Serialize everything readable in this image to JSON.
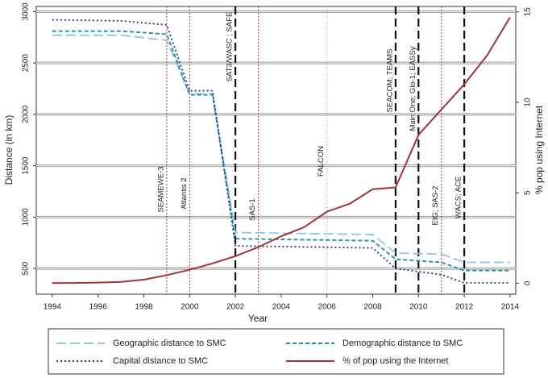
{
  "chart_data": {
    "type": "line",
    "x_label": "Year",
    "y_label": "Distance (in km)",
    "y2_label": "% pop using Internet",
    "xlim": [
      1993.3,
      2014.25
    ],
    "xticks": [
      1994,
      1996,
      1998,
      2000,
      2002,
      2004,
      2006,
      2008,
      2010,
      2012,
      2014
    ],
    "ylim": [
      250,
      3050
    ],
    "yticks": [
      500,
      1000,
      1500,
      2000,
      2500,
      3000
    ],
    "y2lim": [
      -0.6,
      15.3
    ],
    "y2ticks": [
      0,
      5,
      10,
      15
    ],
    "grid": true,
    "legend": "bottom",
    "series": [
      {
        "name": "Geographic distance to SMC",
        "color": "#8ec5e6",
        "line_style": "dashed",
        "x": [
          1994,
          1997,
          1999,
          2000,
          2001,
          2002,
          2008,
          2009,
          2011,
          2012,
          2014
        ],
        "values": [
          2770,
          2770,
          2720,
          2200,
          2200,
          850,
          830,
          650,
          640,
          560,
          560
        ]
      },
      {
        "name": "Demographic distance to SMC",
        "color": "#1a8ca6",
        "line_style": "short-dashed",
        "x": [
          1994,
          1997,
          1999,
          2000,
          2001,
          2002,
          2008,
          2009,
          2011,
          2012,
          2014
        ],
        "values": [
          2810,
          2810,
          2780,
          2190,
          2190,
          790,
          770,
          590,
          560,
          480,
          480
        ]
      },
      {
        "name": "Capital distance to SMC",
        "color": "#1f3b70",
        "line_style": "dotted",
        "x": [
          1994,
          1997,
          1999,
          2000,
          2001,
          2002,
          2008,
          2009,
          2011,
          2012,
          2014
        ],
        "values": [
          2920,
          2910,
          2870,
          2230,
          2230,
          720,
          700,
          500,
          440,
          360,
          360
        ]
      },
      {
        "name": "% of pop using the Internet",
        "color": "#a03535",
        "line_style": "solid",
        "axis": "y2",
        "x": [
          1994,
          1995,
          1996,
          1997,
          1998,
          1999,
          2000,
          2001,
          2002,
          2003,
          2004,
          2005,
          2006,
          2007,
          2008,
          2009,
          2010,
          2011,
          2012,
          2013,
          2014
        ],
        "values": [
          0.01,
          0.02,
          0.04,
          0.08,
          0.2,
          0.45,
          0.75,
          1.1,
          1.5,
          2.0,
          2.6,
          3.1,
          3.96,
          4.4,
          5.2,
          5.3,
          8.2,
          9.6,
          11,
          12.6,
          14.7
        ]
      }
    ],
    "annotations": [
      {
        "x": 1999,
        "label": "SEAMEWE-3",
        "style": "minor"
      },
      {
        "x": 2000,
        "label": "Atlantis 2",
        "style": "minor"
      },
      {
        "x": 2002,
        "label": "SAT3/WASC ; SAFE",
        "style": "major"
      },
      {
        "x": 2003,
        "label": "SAS-1",
        "style": "minor"
      },
      {
        "x": 2006,
        "label": "FALCON",
        "style": "faint"
      },
      {
        "x": 2009,
        "label": "SEACOM; TEAMS",
        "style": "major"
      },
      {
        "x": 2010,
        "label": "Main One; Glo-1; EASSy",
        "style": "major"
      },
      {
        "x": 2011,
        "label": "EIG; SAS-2",
        "style": "minor"
      },
      {
        "x": 2012,
        "label": "WACS; ACE",
        "style": "major"
      }
    ]
  }
}
